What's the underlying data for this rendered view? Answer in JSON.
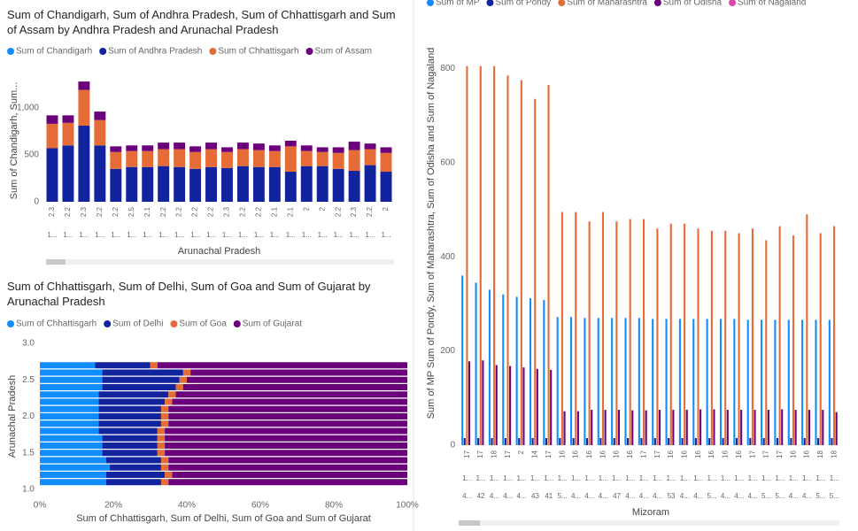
{
  "chart_data": [
    {
      "type": "stacked_column",
      "title": "Sum of Chandigarh, Sum of Andhra Pradesh, Sum of Chhattisgarh and Sum of Assam by Andhra Pradesh and Arunachal Pradesh",
      "y_label": "Sum of Chandigarh, Sum...",
      "x_label": "Arunachal Pradesh",
      "categories": [
        "2.3",
        "2.2",
        "2.3",
        "2.2",
        "2.2",
        "2.5",
        "2.1",
        "2.2",
        "2.2",
        "2.2",
        "2.2",
        "2.3",
        "2.2",
        "2.2",
        "2.1",
        "2.1",
        "2",
        "2",
        "2.2",
        "2.3",
        "2.2",
        "2"
      ],
      "categories_level2": [
        "1...",
        "1...",
        "1...",
        "1...",
        "1...",
        "1...",
        "1...",
        "1...",
        "1...",
        "1...",
        "1...",
        "1...",
        "1...",
        "1...",
        "1...",
        "1...",
        "1...",
        "1...",
        "1...",
        "1...",
        "1...",
        "1..."
      ],
      "ylim": [
        0,
        1300
      ],
      "yticks": [
        0,
        500,
        {
          "value": 1000,
          "label": "1,000"
        }
      ],
      "series": [
        {
          "name": "Sum of Chandigarh",
          "color": "#118DFF",
          "values": [
            0,
            0,
            0,
            0,
            0,
            0,
            0,
            0,
            0,
            0,
            0,
            0,
            0,
            0,
            0,
            0,
            0,
            0,
            0,
            0,
            0,
            0
          ]
        },
        {
          "name": "Sum of Andhra Pradesh",
          "color": "#12239E",
          "values": [
            570,
            600,
            810,
            600,
            350,
            370,
            370,
            380,
            370,
            350,
            370,
            360,
            380,
            370,
            370,
            320,
            380,
            380,
            350,
            330,
            390,
            320
          ]
        },
        {
          "name": "Sum of Chhattisgarh",
          "color": "#E66C37",
          "values": [
            260,
            240,
            380,
            270,
            180,
            170,
            170,
            180,
            190,
            180,
            190,
            170,
            180,
            180,
            170,
            270,
            160,
            150,
            170,
            220,
            170,
            200
          ]
        },
        {
          "name": "Sum of Assam",
          "color": "#6B007B",
          "values": [
            90,
            80,
            90,
            90,
            60,
            60,
            60,
            70,
            70,
            60,
            70,
            50,
            70,
            70,
            60,
            60,
            60,
            50,
            60,
            90,
            60,
            60
          ]
        }
      ]
    },
    {
      "type": "percent_stacked_bar",
      "title": "Sum of Chhattisgarh, Sum of Delhi, Sum of Goa and Sum of Gujarat by Arunachal Pradesh",
      "y_label": "Arunachal Pradesh",
      "x_label": "Sum of Chhattisgarh, Sum of Delhi, Sum of Goa and Sum of Gujarat",
      "y": [
        1.1,
        1.2,
        1.3,
        1.4,
        1.5,
        1.6,
        1.7,
        1.8,
        1.9,
        2.0,
        2.1,
        2.2,
        2.3,
        2.4,
        2.5,
        2.6,
        2.7
      ],
      "ylim": [
        1,
        3
      ],
      "yticks": [
        {
          "value": 1,
          "label": "1.0"
        },
        1.5,
        {
          "value": 2,
          "label": "2.0"
        },
        2.5,
        {
          "value": 3,
          "label": "3.0"
        }
      ],
      "xlim": [
        0,
        100
      ],
      "xticks": [
        {
          "value": 0,
          "label": "0%"
        },
        {
          "value": 20,
          "label": "20%"
        },
        {
          "value": 40,
          "label": "40%"
        },
        {
          "value": 60,
          "label": "60%"
        },
        {
          "value": 80,
          "label": "80%"
        },
        {
          "value": 100,
          "label": "100%"
        }
      ],
      "series": [
        {
          "name": "Sum of Chhattisgarh",
          "color": "#118DFF",
          "values": [
            18,
            18,
            19,
            18,
            17,
            17,
            17,
            16,
            16,
            16,
            16,
            16,
            16,
            17,
            17,
            17,
            15
          ]
        },
        {
          "name": "Sum of Delhi",
          "color": "#12239E",
          "values": [
            15,
            16,
            14,
            15,
            15,
            15,
            15,
            16,
            17,
            17,
            17,
            18,
            19,
            20,
            21,
            22,
            15
          ]
        },
        {
          "name": "Sum of Goa",
          "color": "#E66C37",
          "values": [
            2,
            2,
            2,
            2,
            2,
            2,
            2,
            2,
            2,
            2,
            2,
            2,
            2,
            2,
            2,
            2,
            2
          ]
        },
        {
          "name": "Sum of Gujarat",
          "color": "#6B007B",
          "values": [
            65,
            64,
            65,
            65,
            66,
            66,
            66,
            66,
            65,
            65,
            65,
            64,
            63,
            61,
            60,
            59,
            68
          ]
        }
      ]
    },
    {
      "type": "clustered_column",
      "y_label": "Sum of MP Sum of Pondy, Sum of Maharashtra, Sum of Odisha and Sum of Nagaland",
      "x_label": "Mizoram",
      "categories": [
        "17",
        "17",
        "18",
        "17",
        "2",
        "14",
        "17",
        "16",
        "16",
        "16",
        "16",
        "16",
        "16",
        "17",
        "17",
        "16",
        "16",
        "16",
        "16",
        "16",
        "16",
        "17",
        "17",
        "17",
        "16",
        "16",
        "18",
        "18"
      ],
      "categories_level2": [
        "1...",
        "1...",
        "1...",
        "1...",
        "1...",
        "1...",
        "1...",
        "1...",
        "1...",
        "1...",
        "1...",
        "1...",
        "1...",
        "1...",
        "1...",
        "1...",
        "1...",
        "1...",
        "1...",
        "1...",
        "1...",
        "1...",
        "1...",
        "1...",
        "1...",
        "1...",
        "1...",
        "1..."
      ],
      "categories_level3": [
        "4...",
        "42",
        "4...",
        "4...",
        "4...",
        "43",
        "41",
        "5...",
        "4...",
        "4...",
        "4...",
        "47",
        "4...",
        "4...",
        "4...",
        "53",
        "4...",
        "4...",
        "5...",
        "4...",
        "4...",
        "4...",
        "5...",
        "5...",
        "4...",
        "4...",
        "5...",
        "5..."
      ],
      "ylim": [
        0,
        900
      ],
      "yticks": [
        0,
        200,
        400,
        600,
        800
      ],
      "series": [
        {
          "name": "Sum of MP",
          "color": "#118DFF",
          "values": [
            360,
            345,
            330,
            320,
            315,
            312,
            308,
            272,
            272,
            270,
            270,
            270,
            270,
            270,
            268,
            268,
            268,
            268,
            268,
            268,
            268,
            266,
            266,
            266,
            266,
            266,
            266,
            266
          ]
        },
        {
          "name": "Sum of Pondy",
          "color": "#12239E",
          "values": [
            15,
            15,
            15,
            15,
            15,
            15,
            15,
            15,
            15,
            15,
            15,
            15,
            15,
            15,
            15,
            15,
            15,
            15,
            15,
            15,
            15,
            15,
            15,
            15,
            15,
            15,
            15,
            15
          ]
        },
        {
          "name": "Sum of Maharashtra",
          "color": "#E66C37",
          "values": [
            805,
            805,
            805,
            785,
            775,
            735,
            765,
            495,
            495,
            475,
            495,
            475,
            480,
            480,
            460,
            470,
            470,
            460,
            455,
            455,
            450,
            460,
            435,
            465,
            445,
            490,
            450,
            465
          ]
        },
        {
          "name": "Sum of Odisha",
          "color": "#6B007B",
          "values": [
            178,
            180,
            170,
            168,
            165,
            162,
            160,
            72,
            72,
            75,
            75,
            75,
            74,
            74,
            75,
            75,
            75,
            76,
            76,
            75,
            75,
            75,
            75,
            76,
            75,
            75,
            75,
            70
          ]
        },
        {
          "name": "Sum of Nagaland",
          "color": "#E044A7",
          "values": [
            0,
            0,
            0,
            0,
            0,
            0,
            0,
            0,
            0,
            0,
            0,
            0,
            0,
            0,
            0,
            0,
            0,
            0,
            0,
            0,
            0,
            0,
            0,
            0,
            0,
            0,
            0,
            0
          ]
        }
      ]
    }
  ]
}
